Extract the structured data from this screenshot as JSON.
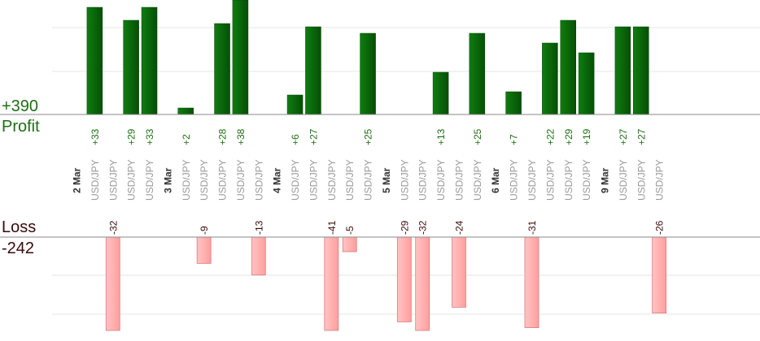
{
  "summary": {
    "profit_total": "+390",
    "profit_label": "Profit",
    "loss_label": "Loss",
    "loss_total": "-242"
  },
  "colors": {
    "profit_bar": "#0b6b0b",
    "loss_bar": "#ffb6b6",
    "profit_text": "#1e6e14",
    "loss_text": "#3a0a0a",
    "date_text": "#333333",
    "pair_text": "#999999",
    "grid": "#e6e6e6",
    "axis": "#888888"
  },
  "chart_data": {
    "type": "bar",
    "grid": true,
    "profit_axis_top": 50,
    "loss_axis_bottom": 50,
    "columns": [
      {
        "date": "2 Mar"
      },
      {
        "pair": "USD/JPY",
        "profit": 33
      },
      {
        "pair": "USD/JPY",
        "loss": -32
      },
      {
        "pair": "USD/JPY",
        "profit": 29
      },
      {
        "pair": "USD/JPY",
        "profit": 33
      },
      {
        "date": "3 Mar"
      },
      {
        "pair": "USD/JPY",
        "profit": 2
      },
      {
        "pair": "USD/JPY",
        "loss": -9
      },
      {
        "pair": "USD/JPY",
        "profit": 28
      },
      {
        "pair": "USD/JPY",
        "profit": 38
      },
      {
        "pair": "USD/JPY",
        "loss": -13
      },
      {
        "date": "4 Mar"
      },
      {
        "pair": "USD/JPY",
        "profit": 6
      },
      {
        "pair": "USD/JPY",
        "profit": 27
      },
      {
        "pair": "USD/JPY",
        "loss": -41
      },
      {
        "pair": "USD/JPY",
        "loss": -5
      },
      {
        "pair": "USD/JPY",
        "profit": 25
      },
      {
        "date": "5 Mar"
      },
      {
        "pair": "USD/JPY",
        "loss": -29
      },
      {
        "pair": "USD/JPY",
        "loss": -32
      },
      {
        "pair": "USD/JPY",
        "profit": 13
      },
      {
        "pair": "USD/JPY",
        "loss": -24
      },
      {
        "pair": "USD/JPY",
        "profit": 25
      },
      {
        "date": "6 Mar"
      },
      {
        "pair": "USD/JPY",
        "profit": 7
      },
      {
        "pair": "USD/JPY",
        "loss": -31
      },
      {
        "pair": "USD/JPY",
        "profit": 22
      },
      {
        "pair": "USD/JPY",
        "profit": 29
      },
      {
        "pair": "USD/JPY",
        "profit": 19
      },
      {
        "date": "9 Mar"
      },
      {
        "pair": "USD/JPY",
        "profit": 27
      },
      {
        "pair": "USD/JPY",
        "profit": 27
      },
      {
        "pair": "USD/JPY",
        "loss": -26
      }
    ]
  }
}
